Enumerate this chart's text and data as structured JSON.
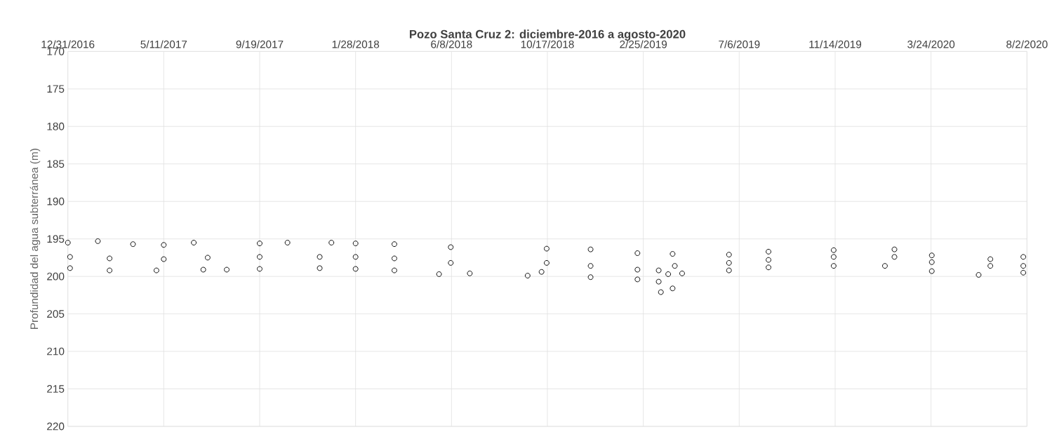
{
  "chart_data": {
    "type": "scatter",
    "title": "Pozo Santa Cruz 2: diciembre-2016 a agosto-2020",
    "ylabel": "Profundidad del agua subterránea (m)",
    "series": [
      {
        "color": "#000000",
        "x": [
          "2016-12-31",
          "2017-02-10",
          "2017-03-30",
          "2017-05-11",
          "2017-06-21",
          "2017-09-19",
          "2017-10-27",
          "2017-12-26",
          "2018-01-28",
          "2018-03-22",
          "2018-06-07",
          "2018-10-16",
          "2018-12-15",
          "2019-02-17",
          "2019-04-06",
          "2019-06-22",
          "2019-08-15",
          "2019-11-12",
          "2020-02-03",
          "2020-03-25",
          "2020-06-13",
          "2020-07-28"
        ],
        "values": [
          195.5,
          195.3,
          195.7,
          195.8,
          195.5,
          195.6,
          195.5,
          195.5,
          195.6,
          195.7,
          196.1,
          196.3,
          196.4,
          196.9,
          197.0,
          197.1,
          196.7,
          196.5,
          196.4,
          197.2,
          197.7,
          197.4
        ]
      },
      {
        "color": "#000000",
        "x": [
          "2017-01-03",
          "2017-02-26",
          "2017-05-11",
          "2017-07-10",
          "2017-09-19",
          "2017-12-10",
          "2018-01-28",
          "2018-03-22",
          "2018-06-07",
          "2018-10-16",
          "2018-12-15",
          "2019-02-17",
          "2019-03-18",
          "2019-03-31",
          "2019-04-09",
          "2019-06-22",
          "2019-08-15",
          "2019-11-12",
          "2020-02-03",
          "2020-03-25",
          "2020-06-13",
          "2020-07-28"
        ],
        "values": [
          197.4,
          197.6,
          197.7,
          197.5,
          197.4,
          197.4,
          197.4,
          197.6,
          198.2,
          198.2,
          198.6,
          199.1,
          199.2,
          199.7,
          198.6,
          198.2,
          197.8,
          197.4,
          197.4,
          198.1,
          198.6,
          198.6
        ]
      },
      {
        "color": "#000000",
        "x": [
          "2017-01-03",
          "2017-02-26",
          "2017-05-01",
          "2017-07-04",
          "2017-08-05",
          "2017-09-19",
          "2017-12-10",
          "2018-01-28",
          "2018-03-22",
          "2018-05-22",
          "2018-07-03",
          "2018-09-20",
          "2018-10-09",
          "2018-12-15",
          "2019-02-17",
          "2019-03-18",
          "2019-03-21",
          "2019-04-06",
          "2019-04-19",
          "2019-06-22",
          "2019-08-15",
          "2019-11-12",
          "2020-01-21",
          "2020-03-25",
          "2020-05-28",
          "2020-07-28"
        ],
        "values": [
          198.9,
          199.2,
          199.2,
          199.1,
          199.1,
          199.0,
          198.9,
          199.0,
          199.2,
          199.7,
          199.6,
          199.9,
          199.4,
          200.1,
          200.4,
          200.7,
          202.1,
          201.6,
          199.6,
          199.2,
          198.8,
          198.6,
          198.6,
          199.3,
          199.8,
          199.5
        ]
      }
    ],
    "xlim": [
      "2016-12-31",
      "2020-08-02"
    ],
    "xticks": [
      {
        "value": "2016-12-31",
        "label": "12/31/2016"
      },
      {
        "value": "2017-05-11",
        "label": "5/11/2017"
      },
      {
        "value": "2017-09-19",
        "label": "9/19/2017"
      },
      {
        "value": "2018-01-28",
        "label": "1/28/2018"
      },
      {
        "value": "2018-06-08",
        "label": "6/8/2018"
      },
      {
        "value": "2018-10-17",
        "label": "10/17/2018"
      },
      {
        "value": "2019-02-25",
        "label": "2/25/2019"
      },
      {
        "value": "2019-07-06",
        "label": "7/6/2019"
      },
      {
        "value": "2019-11-14",
        "label": "11/14/2019"
      },
      {
        "value": "2020-03-24",
        "label": "3/24/2020"
      },
      {
        "value": "2020-08-02",
        "label": "8/2/2020"
      }
    ],
    "ylim": [
      220,
      170
    ],
    "yticks": [
      170,
      175,
      180,
      185,
      190,
      195,
      200,
      205,
      210,
      215,
      220
    ],
    "grid": true,
    "marker": "circle"
  }
}
